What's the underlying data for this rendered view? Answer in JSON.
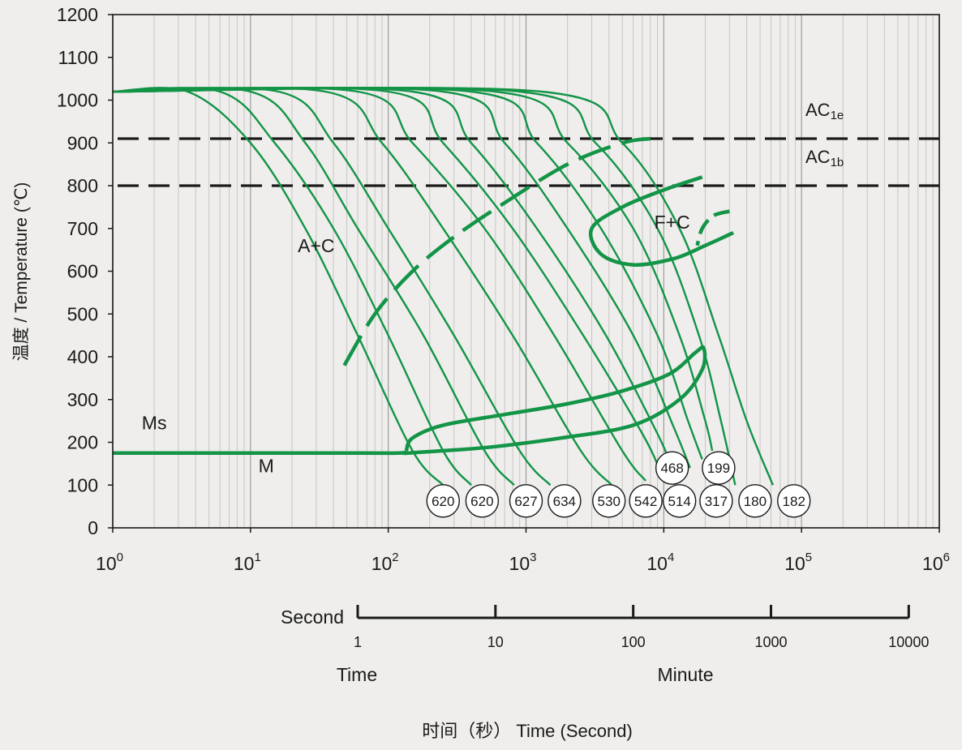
{
  "chart_data": {
    "type": "line",
    "title": "",
    "xlabel": "时间（秒） Time (Second)",
    "ylabel": "温度 / Temperature (℃)",
    "x_scale": "log",
    "xlim": [
      1,
      1000000
    ],
    "ylim": [
      0,
      1200
    ],
    "grid": true,
    "x_ticks": [
      {
        "value": 1,
        "base": "10",
        "exp": "0"
      },
      {
        "value": 10,
        "base": "10",
        "exp": "1"
      },
      {
        "value": 100,
        "base": "10",
        "exp": "2"
      },
      {
        "value": 1000,
        "base": "10",
        "exp": "3"
      },
      {
        "value": 10000,
        "base": "10",
        "exp": "4"
      },
      {
        "value": 100000,
        "base": "10",
        "exp": "5"
      },
      {
        "value": 1000000,
        "base": "10",
        "exp": "6"
      }
    ],
    "y_ticks": [
      0,
      100,
      200,
      300,
      400,
      500,
      600,
      700,
      800,
      900,
      1000,
      1100,
      1200
    ],
    "minute_scale": {
      "label": "Second",
      "ticks": [
        {
          "label": "1",
          "seconds": 60
        },
        {
          "label": "10",
          "seconds": 600
        },
        {
          "label": "100",
          "seconds": 6000
        },
        {
          "label": "1000",
          "seconds": 60000
        },
        {
          "label": "10000",
          "seconds": 600000
        }
      ],
      "time_label": "Time",
      "minute_label": "Minute"
    },
    "reference_lines": [
      {
        "name": "AC1e",
        "main": "AC",
        "sub": "1e",
        "y": 910
      },
      {
        "name": "AC1b",
        "main": "AC",
        "sub": "1b",
        "y": 800
      }
    ],
    "region_labels": [
      {
        "text": "A+C",
        "x": 30,
        "y": 645
      },
      {
        "text": "F+C",
        "x": 11500,
        "y": 700
      },
      {
        "text": "M",
        "x": 13,
        "y": 130
      },
      {
        "text": "Ms",
        "x": 2.0,
        "y": 230
      }
    ],
    "hardness_values": [
      {
        "text": "620",
        "x": 250,
        "y": 63
      },
      {
        "text": "620",
        "x": 480,
        "y": 63
      },
      {
        "text": "627",
        "x": 1000,
        "y": 63
      },
      {
        "text": "634",
        "x": 1900,
        "y": 63
      },
      {
        "text": "530",
        "x": 4000,
        "y": 63
      },
      {
        "text": "542",
        "x": 7400,
        "y": 63
      },
      {
        "text": "514",
        "x": 13000,
        "y": 63
      },
      {
        "text": "317",
        "x": 24000,
        "y": 63
      },
      {
        "text": "180",
        "x": 46000,
        "y": 63
      },
      {
        "text": "182",
        "x": 88000,
        "y": 63
      },
      {
        "text": "468",
        "x": 11500,
        "y": 140
      },
      {
        "text": "199",
        "x": 25000,
        "y": 140
      }
    ],
    "cooling_curves": [
      {
        "x": [
          1,
          3.5,
          10,
          25,
          60,
          150,
          250
        ],
        "y": [
          1020,
          1020,
          900,
          700,
          450,
          180,
          100
        ]
      },
      {
        "x": [
          1,
          6,
          15,
          40,
          100,
          250,
          400
        ],
        "y": [
          1020,
          1020,
          900,
          700,
          450,
          180,
          100
        ]
      },
      {
        "x": [
          1,
          10,
          25,
          60,
          180,
          500,
          820
        ],
        "y": [
          1020,
          1020,
          900,
          700,
          450,
          180,
          100
        ]
      },
      {
        "x": [
          1,
          16,
          40,
          100,
          300,
          900,
          1500
        ],
        "y": [
          1020,
          1020,
          900,
          700,
          450,
          180,
          100
        ]
      },
      {
        "x": [
          1,
          35,
          90,
          250,
          800,
          2500,
          4200
        ],
        "y": [
          1020,
          1020,
          900,
          700,
          450,
          180,
          100
        ]
      },
      {
        "x": [
          1,
          60,
          150,
          500,
          1600,
          5000,
          7400
        ],
        "y": [
          1020,
          1020,
          900,
          700,
          450,
          180,
          110
        ]
      },
      {
        "x": [
          1,
          100,
          250,
          800,
          2600,
          7000,
          9500
        ],
        "y": [
          1020,
          1020,
          900,
          700,
          450,
          220,
          130
        ]
      },
      {
        "x": [
          1,
          150,
          400,
          1200,
          3800,
          9000,
          11500
        ],
        "y": [
          1020,
          1020,
          900,
          700,
          450,
          220,
          140
        ]
      },
      {
        "x": [
          1,
          250,
          700,
          2000,
          6000,
          12000,
          15500
        ],
        "y": [
          1020,
          1020,
          900,
          700,
          450,
          230,
          140
        ]
      },
      {
        "x": [
          1,
          400,
          1200,
          3500,
          9000,
          15000,
          19000
        ],
        "y": [
          1020,
          1020,
          900,
          700,
          450,
          250,
          160
        ]
      },
      {
        "x": [
          1,
          600,
          2000,
          6000,
          13000,
          20000,
          22500
        ],
        "y": [
          1020,
          1020,
          900,
          700,
          450,
          250,
          180
        ]
      },
      {
        "x": [
          1,
          900,
          3200,
          9000,
          18000,
          26000,
          33000
        ],
        "y": [
          1020,
          1020,
          900,
          700,
          450,
          250,
          100
        ]
      },
      {
        "x": [
          1,
          1300,
          5000,
          13000,
          25000,
          40000,
          62000
        ],
        "y": [
          1020,
          1020,
          900,
          700,
          450,
          250,
          100
        ]
      }
    ],
    "transformation_boundaries": {
      "pearlite_start": {
        "x": [
          48,
          80,
          150,
          300,
          700,
          2000,
          5000,
          8000
        ],
        "y": [
          380,
          500,
          600,
          680,
          760,
          850,
          900,
          910
        ]
      },
      "ferrite_region": {
        "x": [
          19000,
          10000,
          5000,
          3000,
          3500,
          6000,
          12000,
          20000,
          32000
        ],
        "y": [
          820,
          790,
          750,
          700,
          640,
          615,
          630,
          660,
          690
        ]
      },
      "ferrite_finish": {
        "x": [
          30000,
          23000,
          19000,
          17500
        ],
        "y": [
          740,
          730,
          700,
          660
        ]
      },
      "bainite_region": {
        "x": [
          135,
          150,
          250,
          700,
          2000,
          5000,
          11000,
          17000,
          19500,
          19000,
          13000,
          6000,
          1800,
          600,
          300,
          140,
          130
        ],
        "y": [
          180,
          210,
          240,
          265,
          290,
          320,
          360,
          410,
          420,
          370,
          300,
          240,
          210,
          190,
          182,
          175,
          175
        ]
      },
      "ms_line": {
        "x": [
          1,
          60,
          120,
          135
        ],
        "y": [
          175,
          175,
          175,
          178
        ]
      }
    }
  }
}
